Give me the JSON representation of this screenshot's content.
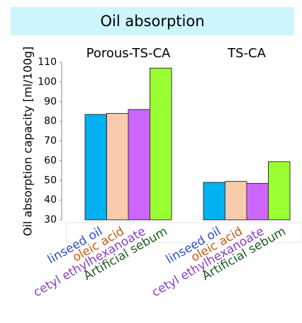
{
  "chart_data": {
    "type": "bar",
    "title": "Oil absorption",
    "ylabel": "Oil absorption capacity [ml/100g]",
    "categories": [
      "Porous-TS-CA",
      "TS-CA"
    ],
    "series": [
      {
        "name": "linseed oil",
        "color": "#00b0f0",
        "label_color": "#2e4fcf",
        "values": [
          83.5,
          49
        ]
      },
      {
        "name": "oleic acid",
        "color": "#f8cbad",
        "label_color": "#c55a11",
        "values": [
          84,
          49.5
        ]
      },
      {
        "name": "cetyl ethylhexanoate",
        "color": "#cc66ff",
        "label_color": "#8a3fc4",
        "values": [
          86,
          48.5
        ]
      },
      {
        "name": "Artificial sebum",
        "color": "#99ff33",
        "label_color": "#1e5c1e",
        "values": [
          107,
          59.5
        ]
      }
    ],
    "ylim": [
      30,
      110
    ],
    "yticks": [
      30,
      40,
      50,
      60,
      70,
      80,
      90,
      100,
      110
    ],
    "grid": false
  }
}
